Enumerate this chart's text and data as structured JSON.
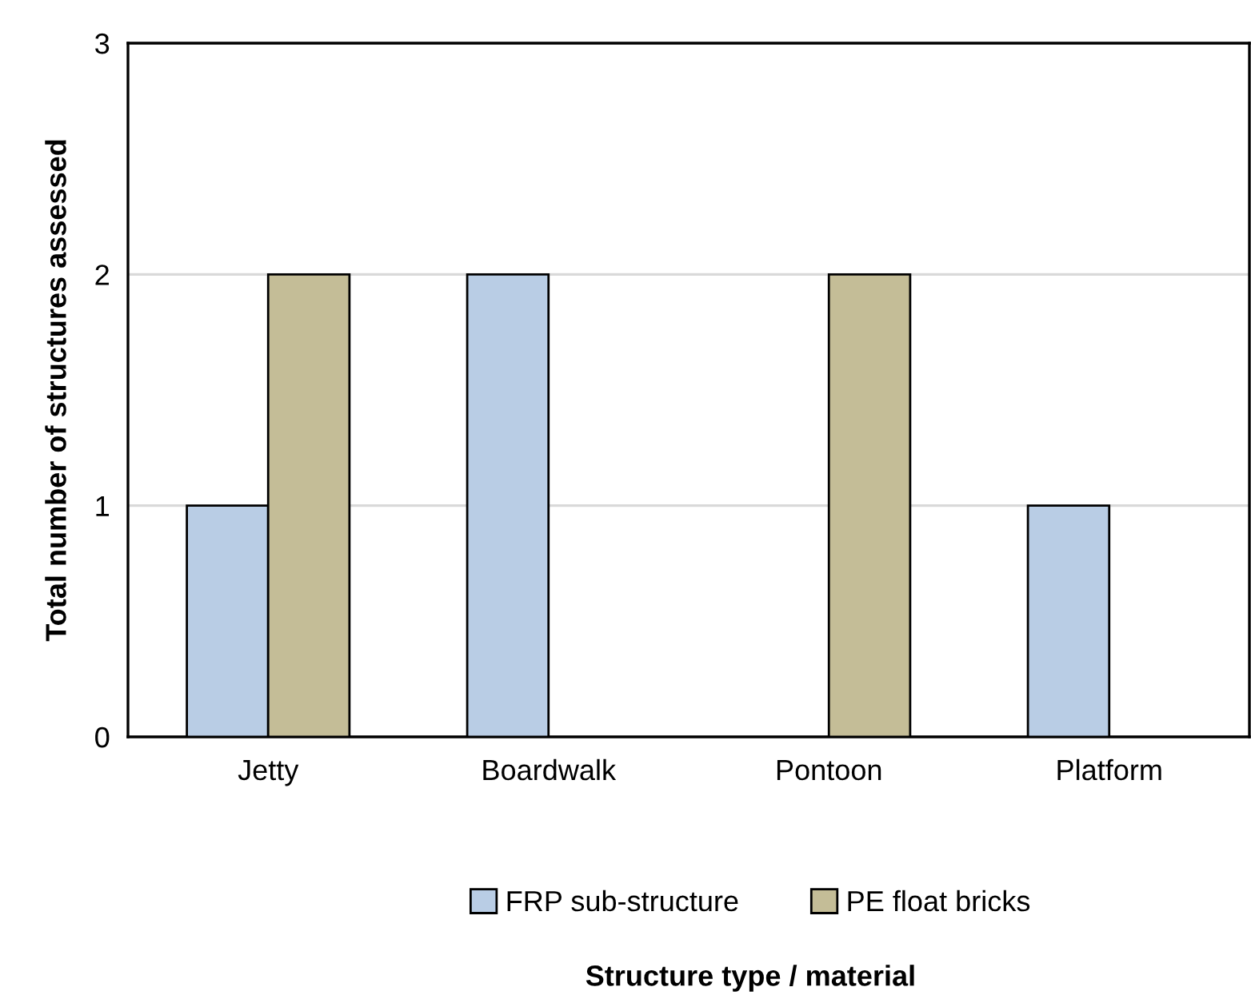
{
  "chart_data": {
    "type": "bar",
    "annotations": [
      "Structure type / material"
    ],
    "ylabel": "Total number of structures assessed",
    "categories": [
      "Jetty",
      "Boardwalk",
      "Pontoon",
      "Platform"
    ],
    "series": [
      {
        "name": "FRP sub-structure",
        "color": "#b9cde5",
        "values": [
          1,
          2,
          null,
          1
        ]
      },
      {
        "name": "PE float bricks",
        "color": "#c4bd97",
        "values": [
          2,
          null,
          2,
          null
        ]
      }
    ],
    "ylim": [
      0,
      3
    ],
    "yticks": [
      0,
      1,
      2,
      3
    ],
    "grid": "y",
    "legend": "bottom"
  }
}
